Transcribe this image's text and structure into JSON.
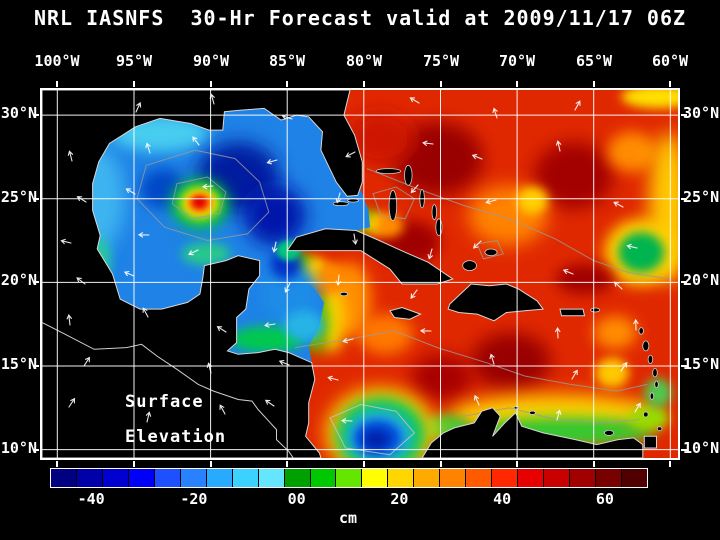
{
  "title": "NRL IASNFS  30-Hr Forecast valid at 2009/11/17 06Z",
  "axes": {
    "x_ticks": [
      "100°W",
      "95°W",
      "90°W",
      "85°W",
      "80°W",
      "75°W",
      "70°W",
      "65°W",
      "60°W"
    ],
    "y_ticks": [
      "30°N",
      "25°N",
      "20°N",
      "15°N",
      "10°N"
    ],
    "lon_values": [
      -100,
      -95,
      -90,
      -85,
      -80,
      -75,
      -70,
      -65,
      -60
    ],
    "lat_values": [
      30,
      25,
      20,
      15,
      10
    ]
  },
  "annotation": {
    "line1": "Surface",
    "line2": "Elevation"
  },
  "colorbar": {
    "labels": [
      "-40",
      "-20",
      "00",
      "20",
      "40",
      "60"
    ],
    "values": [
      -40,
      -20,
      0,
      20,
      40,
      60
    ],
    "min": -48,
    "max": 68,
    "unit": "cm",
    "colors": [
      "#000080",
      "#0000a8",
      "#0000d0",
      "#0000f8",
      "#1e50ff",
      "#2882ff",
      "#28aaff",
      "#3cd2ff",
      "#64e6ff",
      "#00a000",
      "#00c800",
      "#64e600",
      "#ffff00",
      "#ffd700",
      "#ffaa00",
      "#ff8200",
      "#ff5a00",
      "#ff2800",
      "#e60000",
      "#c80000",
      "#a00000",
      "#780000",
      "#500000"
    ]
  },
  "map_field": {
    "variable": "sea surface elevation",
    "base_color": "#e02800",
    "gulf_color": "#1e82e6",
    "features": [
      {
        "name": "atl-darkred-nw",
        "layer": 1,
        "lon": -75.2,
        "lat": 27.4,
        "rx": 3.0,
        "ry": 2.2,
        "color": "#990000",
        "blur": 9
      },
      {
        "name": "atl-darkred-ne",
        "layer": 1,
        "lon": -66.3,
        "lat": 26.4,
        "rx": 2.6,
        "ry": 2.0,
        "color": "#a30000",
        "blur": 9
      },
      {
        "name": "atl-red-deep-fl",
        "layer": 1,
        "lon": -78.9,
        "lat": 28.6,
        "rx": 2.2,
        "ry": 1.6,
        "color": "#cd1400",
        "blur": 9
      },
      {
        "name": "atl-orange-ne",
        "layer": 1,
        "lon": -62.5,
        "lat": 27.8,
        "rx": 1.6,
        "ry": 1.2,
        "color": "#ff8c00",
        "blur": 7
      },
      {
        "name": "atl-darkred-cuba-n",
        "layer": 1,
        "lon": -77.0,
        "lat": 22.4,
        "rx": 2.0,
        "ry": 1.3,
        "color": "#a00000",
        "blur": 7
      },
      {
        "name": "atl-orange-mid",
        "layer": 1,
        "lon": -70.6,
        "lat": 24.0,
        "rx": 2.6,
        "ry": 1.8,
        "color": "#ff8200",
        "blur": 9
      },
      {
        "name": "atl-yellow-fleck",
        "layer": 1,
        "lon": -69.0,
        "lat": 24.9,
        "rx": 1.0,
        "ry": 0.8,
        "color": "#ffd200",
        "blur": 5
      },
      {
        "name": "atl-yellow-right",
        "layer": 1,
        "lon": -60.1,
        "lat": 24.5,
        "rx": 1.3,
        "ry": 4.5,
        "color": "#ffc800",
        "blur": 9
      },
      {
        "name": "atl-yellow-topright",
        "layer": 1,
        "lon": -60.8,
        "lat": 31.1,
        "rx": 2.4,
        "ry": 0.7,
        "color": "#ffe100",
        "blur": 5
      },
      {
        "name": "atl-green-right-halo",
        "layer": 1,
        "lon": -61.9,
        "lat": 21.8,
        "rx": 2.4,
        "ry": 2.0,
        "color": "#ffd200",
        "blur": 7
      },
      {
        "name": "atl-green-right",
        "layer": 1,
        "lon": -61.9,
        "lat": 21.8,
        "rx": 1.5,
        "ry": 1.2,
        "color": "#00b450",
        "blur": 5
      },
      {
        "name": "atl-darkred-pr-n",
        "layer": 1,
        "lon": -65.6,
        "lat": 20.2,
        "rx": 1.9,
        "ry": 0.9,
        "color": "#a00000",
        "blur": 7
      },
      {
        "name": "carib-darkred-c",
        "layer": 1,
        "lon": -70.4,
        "lat": 15.3,
        "rx": 2.6,
        "ry": 1.7,
        "color": "#990000",
        "blur": 9
      },
      {
        "name": "carib-darkred-w",
        "layer": 1,
        "lon": -74.9,
        "lat": 14.3,
        "rx": 2.0,
        "ry": 1.4,
        "color": "#a80000",
        "blur": 9
      },
      {
        "name": "carib-orange-jamaica",
        "layer": 1,
        "lon": -78.6,
        "lat": 16.9,
        "rx": 1.8,
        "ry": 1.2,
        "color": "#ff7800",
        "blur": 7
      },
      {
        "name": "carib-orange-e",
        "layer": 1,
        "lon": -63.6,
        "lat": 17.0,
        "rx": 1.4,
        "ry": 1.0,
        "color": "#ff8c00",
        "blur": 7
      },
      {
        "name": "carib-yellow-se",
        "layer": 1,
        "lon": -63.8,
        "lat": 14.6,
        "rx": 1.1,
        "ry": 0.9,
        "color": "#ffc800",
        "blur": 5
      },
      {
        "name": "carib-south-yellow-band",
        "layer": 1,
        "lon": -67.5,
        "lat": 12.0,
        "rx": 7.0,
        "ry": 1.3,
        "color": "#ffd200",
        "blur": 9
      },
      {
        "name": "carib-south-green-band",
        "layer": 1,
        "lon": -67.0,
        "lat": 11.1,
        "rx": 6.0,
        "ry": 0.85,
        "color": "#32c832",
        "blur": 7
      },
      {
        "name": "colombia-coast-green",
        "layer": 1,
        "lon": -74.6,
        "lat": 11.3,
        "rx": 1.6,
        "ry": 0.8,
        "color": "#50c832",
        "blur": 5
      },
      {
        "name": "colombia-basin-yellow-ring",
        "layer": 1,
        "lon": -78.9,
        "lat": 11.0,
        "rx": 3.6,
        "ry": 2.7,
        "color": "#ffd200",
        "blur": 9
      },
      {
        "name": "colombia-basin-green-ring",
        "layer": 1,
        "lon": -78.9,
        "lat": 10.9,
        "rx": 2.9,
        "ry": 2.2,
        "color": "#00c850",
        "blur": 7
      },
      {
        "name": "colombia-basin-cyan-ring",
        "layer": 1,
        "lon": -79.0,
        "lat": 10.8,
        "rx": 2.2,
        "ry": 1.6,
        "color": "#28b4e6",
        "blur": 7
      },
      {
        "name": "colombia-basin-blue",
        "layer": 1,
        "lon": -79.1,
        "lat": 10.7,
        "rx": 1.6,
        "ry": 1.1,
        "color": "#0050dc",
        "blur": 5
      },
      {
        "name": "colombia-basin-navy",
        "layer": 1,
        "lon": -79.2,
        "lat": 10.6,
        "rx": 0.9,
        "ry": 0.6,
        "color": "#0022aa",
        "blur": 5
      },
      {
        "name": "trinidad-green",
        "layer": 1,
        "lon": -61.4,
        "lat": 11.9,
        "rx": 1.3,
        "ry": 0.7,
        "color": "#96dc00",
        "blur": 5
      },
      {
        "name": "antilles-green-s",
        "layer": 1,
        "lon": -60.8,
        "lat": 13.4,
        "rx": 0.9,
        "ry": 0.9,
        "color": "#50c850",
        "blur": 5
      },
      {
        "name": "wcarib-orange-band",
        "layer": 1,
        "lon": -80.9,
        "lat": 19.0,
        "rx": 1.4,
        "ry": 2.2,
        "color": "#ff8c00",
        "blur": 7
      },
      {
        "name": "wcarib-yellow-band",
        "layer": 1,
        "lon": -82.1,
        "lat": 17.8,
        "rx": 0.9,
        "ry": 2.0,
        "color": "#ffd200",
        "blur": 7
      },
      {
        "name": "wcarib-green-band",
        "layer": 1,
        "lon": -83.2,
        "lat": 17.6,
        "rx": 0.9,
        "ry": 1.8,
        "color": "#50c800",
        "blur": 7
      },
      {
        "name": "wcarib-green-band-n",
        "layer": 1,
        "lon": -84.0,
        "lat": 20.8,
        "rx": 0.8,
        "ry": 1.0,
        "color": "#50c800",
        "blur": 5
      },
      {
        "name": "wcarib-yellow-band-n",
        "layer": 1,
        "lon": -83.1,
        "lat": 20.6,
        "rx": 0.8,
        "ry": 0.9,
        "color": "#ffd200",
        "blur": 5
      },
      {
        "name": "wcarib-orange-band-n",
        "layer": 1,
        "lon": -82.1,
        "lat": 20.3,
        "rx": 1.0,
        "ry": 0.9,
        "color": "#ff8c00",
        "blur": 5
      },
      {
        "name": "straits-green",
        "layer": 1,
        "lon": -80.0,
        "lat": 23.7,
        "rx": 0.9,
        "ry": 0.7,
        "color": "#50c800",
        "blur": 5
      },
      {
        "name": "straits-yellow",
        "layer": 1,
        "lon": -79.1,
        "lat": 23.5,
        "rx": 0.8,
        "ry": 0.6,
        "color": "#ffd200",
        "blur": 5
      },
      {
        "name": "straits-orange",
        "layer": 1,
        "lon": -78.3,
        "lat": 23.4,
        "rx": 0.9,
        "ry": 0.7,
        "color": "#ff8c00",
        "blur": 5
      },
      {
        "name": "gulf-west-light",
        "layer": 2,
        "lon": -97.6,
        "lat": 25.0,
        "rx": 2.0,
        "ry": 3.2,
        "color": "#3cb4f0",
        "blur": 9
      },
      {
        "name": "gulf-north-shelf",
        "layer": 2,
        "lon": -93.3,
        "lat": 28.9,
        "rx": 3.2,
        "ry": 1.1,
        "color": "#46cdf0",
        "blur": 7
      },
      {
        "name": "gulf-navy-main",
        "layer": 2,
        "lon": -88.2,
        "lat": 26.3,
        "rx": 2.7,
        "ry": 2.1,
        "color": "#001ea0",
        "blur": 9
      },
      {
        "name": "gulf-navy-se",
        "layer": 2,
        "lon": -85.8,
        "lat": 24.0,
        "rx": 2.0,
        "ry": 1.8,
        "color": "#0014aa",
        "blur": 9
      },
      {
        "name": "gulf-blue-w",
        "layer": 2,
        "lon": -93.1,
        "lat": 25.6,
        "rx": 1.5,
        "ry": 1.2,
        "color": "#0046c8",
        "blur": 7
      },
      {
        "name": "loop-eddy-green",
        "layer": 2,
        "lon": -90.7,
        "lat": 24.7,
        "rx": 1.9,
        "ry": 1.5,
        "color": "#00c832",
        "blur": 7
      },
      {
        "name": "loop-eddy-yellow",
        "layer": 2,
        "lon": -90.7,
        "lat": 24.72,
        "rx": 1.25,
        "ry": 0.95,
        "color": "#ffe100",
        "blur": 5
      },
      {
        "name": "loop-eddy-orange",
        "layer": 2,
        "lon": -90.7,
        "lat": 24.75,
        "rx": 0.85,
        "ry": 0.62,
        "color": "#ff8c00",
        "blur": 3
      },
      {
        "name": "loop-eddy-core",
        "layer": 2,
        "lon": -90.72,
        "lat": 24.78,
        "rx": 0.5,
        "ry": 0.38,
        "color": "#e10000",
        "blur": 3
      },
      {
        "name": "campeche-green",
        "layer": 2,
        "lon": -90.3,
        "lat": 21.7,
        "rx": 1.6,
        "ry": 0.7,
        "color": "#28c88c",
        "blur": 5
      },
      {
        "name": "nwcarib-blue",
        "layer": 2,
        "lon": -84.8,
        "lat": 19.3,
        "rx": 1.8,
        "ry": 1.8,
        "color": "#1e8ce6",
        "blur": 7
      },
      {
        "name": "nwcarib-navy",
        "layer": 2,
        "lon": -85.1,
        "lat": 21.1,
        "rx": 1.0,
        "ry": 0.9,
        "color": "#0032c8",
        "blur": 5
      },
      {
        "name": "honduras-green",
        "layer": 2,
        "lon": -86.3,
        "lat": 16.6,
        "rx": 2.4,
        "ry": 0.8,
        "color": "#00c850",
        "blur": 5
      },
      {
        "name": "nwcarib-cyan",
        "layer": 2,
        "lon": -83.9,
        "lat": 17.4,
        "rx": 1.3,
        "ry": 0.9,
        "color": "#28b4e6",
        "blur": 5
      },
      {
        "name": "yucatan-channel-green",
        "layer": 2,
        "lon": -84.9,
        "lat": 21.9,
        "rx": 0.8,
        "ry": 0.6,
        "color": "#00c878",
        "blur": 3
      },
      {
        "name": "swgulf-coastal-green",
        "layer": 2,
        "lon": -97.3,
        "lat": 21.3,
        "rx": 0.8,
        "ry": 1.4,
        "color": "#28c8a0",
        "blur": 5
      }
    ]
  }
}
